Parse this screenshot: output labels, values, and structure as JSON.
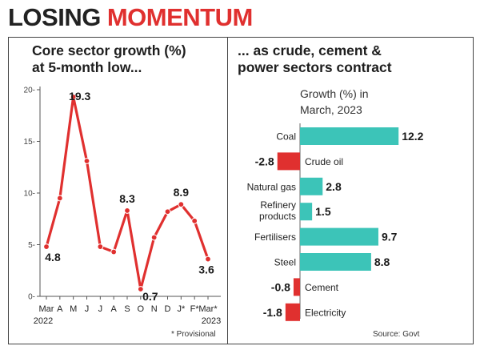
{
  "headline": {
    "part1": "LOSING",
    "part2": "MOMENTUM"
  },
  "colors": {
    "accent_red": "#e0302f",
    "teal": "#3cc4b8",
    "text": "#1a1a1a"
  },
  "left_panel": {
    "subtitle_line1": "Core sector growth (%)",
    "subtitle_line2": "at 5-month low...",
    "year_start": "2022",
    "year_end": "2023",
    "footnote": "* Provisional"
  },
  "right_panel": {
    "subtitle_line1": "... as crude, cement &",
    "subtitle_line2": "power sectors contract",
    "chart_title_line1": "Growth (%) in",
    "chart_title_line2": "March, 2023",
    "source": "Source: Govt"
  },
  "chart_data": [
    {
      "type": "line",
      "title": "Core sector growth (%) at 5-month low...",
      "categories": [
        "Mar",
        "A",
        "M",
        "J",
        "J",
        "A",
        "S",
        "O",
        "N",
        "D",
        "J*",
        "F*",
        "Mar*"
      ],
      "values": [
        4.8,
        9.5,
        19.3,
        13.1,
        4.8,
        4.3,
        8.3,
        0.7,
        5.7,
        8.2,
        8.9,
        7.3,
        3.6
      ],
      "labeled_points": [
        {
          "index": 0,
          "label": "4.8"
        },
        {
          "index": 2,
          "label": "19.3"
        },
        {
          "index": 6,
          "label": "8.3"
        },
        {
          "index": 7,
          "label": "0.7"
        },
        {
          "index": 10,
          "label": "8.9"
        },
        {
          "index": 12,
          "label": "3.6"
        }
      ],
      "yticks": [
        0,
        5,
        10,
        15,
        20
      ],
      "ylim": [
        0,
        20
      ],
      "line_color": "#e0302f",
      "grid": false
    },
    {
      "type": "bar",
      "orientation": "horizontal",
      "title": "Growth (%) in March, 2023",
      "categories": [
        "Coal",
        "Crude oil",
        "Natural gas",
        "Refinery products",
        "Fertilisers",
        "Steel",
        "Cement",
        "Electricity"
      ],
      "values": [
        12.2,
        -2.8,
        2.8,
        1.5,
        9.7,
        8.8,
        -0.8,
        -1.8
      ],
      "value_labels": [
        "12.2",
        "-2.8",
        "2.8",
        "1.5",
        "9.7",
        "8.8",
        "-0.8",
        "-1.8"
      ],
      "positive_color": "#3cc4b8",
      "negative_color": "#e0302f"
    }
  ]
}
